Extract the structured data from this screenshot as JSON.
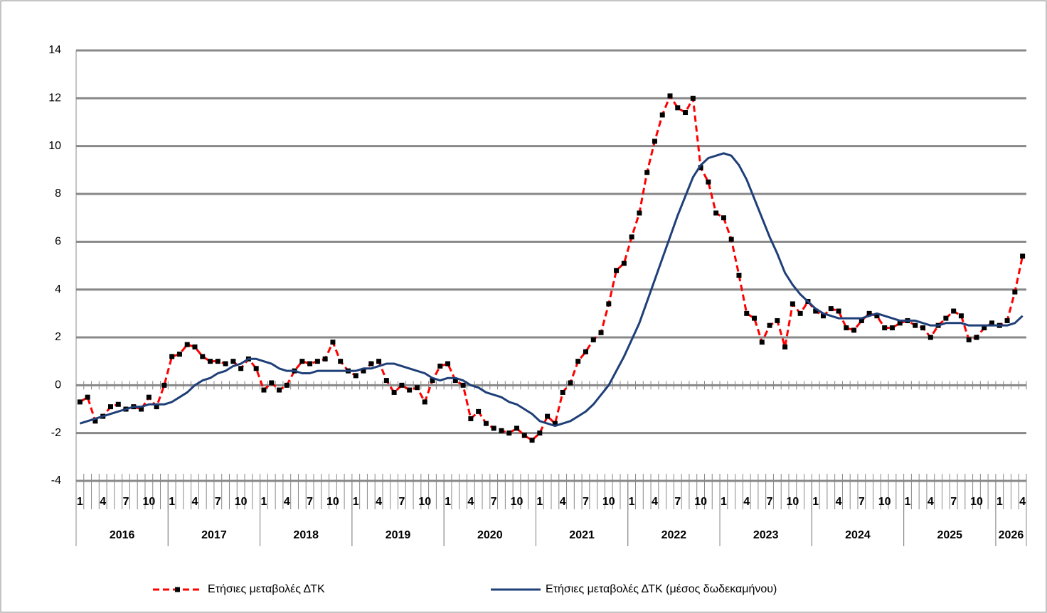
{
  "chart_data": {
    "type": "line",
    "categories": [
      "1",
      null,
      null,
      "4",
      null,
      null,
      "7",
      null,
      null,
      "10",
      null,
      null,
      "1",
      null,
      null,
      "4",
      null,
      null,
      "7",
      null,
      null,
      "10",
      null,
      null,
      "1",
      null,
      null,
      "4",
      null,
      null,
      "7",
      null,
      null,
      "10",
      null,
      null,
      "1",
      null,
      null,
      "4",
      null,
      null,
      "7",
      null,
      null,
      "10",
      null,
      null,
      "1",
      null,
      null,
      "4",
      null,
      null,
      "7",
      null,
      null,
      "10",
      null,
      null,
      "1",
      null,
      null,
      "4",
      null,
      null,
      "7",
      null,
      null,
      "10",
      null,
      null,
      "1",
      null,
      null,
      "4",
      null,
      null,
      "7",
      null,
      null,
      "10",
      null,
      null,
      "1",
      null,
      null,
      "4",
      null,
      null,
      "7",
      null,
      null,
      "10",
      null,
      null,
      "1",
      null,
      null,
      "4",
      null,
      null,
      "7",
      null,
      null,
      "10",
      null,
      null,
      "1",
      null,
      null,
      "4",
      null,
      null,
      "7",
      null,
      null,
      "10",
      null,
      null,
      "1",
      null,
      null,
      "4"
    ],
    "x_groups": [
      "2016",
      "2017",
      "2018",
      "2019",
      "2020",
      "2021",
      "2022",
      "2023",
      "2024",
      "2025",
      "2026"
    ],
    "series": [
      {
        "name": "Ετήσιες μεταβολές ΔΤΚ",
        "color": "#ff0000",
        "dashed": true,
        "markers": true,
        "values": [
          -0.7,
          -0.5,
          -1.5,
          -1.3,
          -0.9,
          -0.8,
          -1.0,
          -0.9,
          -1.0,
          -0.5,
          -0.9,
          0.0,
          1.2,
          1.3,
          1.7,
          1.6,
          1.2,
          1.0,
          1.0,
          0.9,
          1.0,
          0.7,
          1.1,
          0.7,
          -0.2,
          0.1,
          -0.2,
          0.0,
          0.6,
          1.0,
          0.9,
          1.0,
          1.1,
          1.8,
          1.0,
          0.6,
          0.4,
          0.6,
          0.9,
          1.0,
          0.2,
          -0.3,
          0.0,
          -0.2,
          -0.1,
          -0.7,
          0.2,
          0.8,
          0.9,
          0.2,
          0.0,
          -1.4,
          -1.1,
          -1.6,
          -1.8,
          -1.9,
          -2.0,
          -1.8,
          -2.1,
          -2.3,
          -2.0,
          -1.3,
          -1.6,
          -0.3,
          0.1,
          1.0,
          1.4,
          1.9,
          2.2,
          3.4,
          4.8,
          5.1,
          6.2,
          7.2,
          8.9,
          10.2,
          11.3,
          12.1,
          11.6,
          11.4,
          12.0,
          9.1,
          8.5,
          7.2,
          7.0,
          6.1,
          4.6,
          3.0,
          2.8,
          1.8,
          2.5,
          2.7,
          1.6,
          3.4,
          3.0,
          3.5,
          3.1,
          2.9,
          3.2,
          3.1,
          2.4,
          2.3,
          2.7,
          3.0,
          2.9,
          2.4,
          2.4,
          2.6,
          2.7,
          2.5,
          2.4,
          2.0,
          2.5,
          2.8,
          3.1,
          2.9,
          1.9,
          2.0,
          2.4,
          2.6,
          2.5,
          2.7,
          3.9,
          5.4
        ]
      },
      {
        "name": "Ετήσιες μεταβολές ΔΤΚ (μέσος δωδεκαμήνου)",
        "color": "#1f3f78",
        "dashed": false,
        "markers": false,
        "values": [
          -1.6,
          -1.5,
          -1.4,
          -1.3,
          -1.2,
          -1.1,
          -1.0,
          -0.9,
          -0.9,
          -0.8,
          -0.8,
          -0.8,
          -0.7,
          -0.5,
          -0.3,
          0.0,
          0.2,
          0.3,
          0.5,
          0.6,
          0.8,
          0.9,
          1.1,
          1.1,
          1.0,
          0.9,
          0.7,
          0.6,
          0.6,
          0.5,
          0.5,
          0.6,
          0.6,
          0.6,
          0.6,
          0.6,
          0.6,
          0.7,
          0.7,
          0.8,
          0.9,
          0.9,
          0.8,
          0.7,
          0.6,
          0.5,
          0.3,
          0.2,
          0.3,
          0.3,
          0.2,
          0.0,
          -0.1,
          -0.3,
          -0.4,
          -0.5,
          -0.7,
          -0.8,
          -1.0,
          -1.2,
          -1.5,
          -1.6,
          -1.7,
          -1.6,
          -1.5,
          -1.3,
          -1.1,
          -0.8,
          -0.4,
          0.0,
          0.6,
          1.2,
          1.9,
          2.6,
          3.5,
          4.4,
          5.3,
          6.2,
          7.1,
          7.9,
          8.7,
          9.2,
          9.5,
          9.6,
          9.7,
          9.6,
          9.2,
          8.6,
          7.8,
          7.0,
          6.2,
          5.5,
          4.7,
          4.2,
          3.8,
          3.5,
          3.2,
          3.0,
          2.9,
          2.8,
          2.8,
          2.8,
          2.8,
          2.9,
          3.0,
          2.9,
          2.8,
          2.7,
          2.7,
          2.7,
          2.6,
          2.5,
          2.5,
          2.6,
          2.6,
          2.6,
          2.5,
          2.5,
          2.5,
          2.5,
          2.5,
          2.5,
          2.6,
          2.9
        ]
      }
    ],
    "ylim": [
      -4,
      14
    ],
    "yticks": [
      -4,
      -2,
      0,
      2,
      4,
      6,
      8,
      10,
      12,
      14
    ],
    "grid": true,
    "legend": "bottom"
  }
}
